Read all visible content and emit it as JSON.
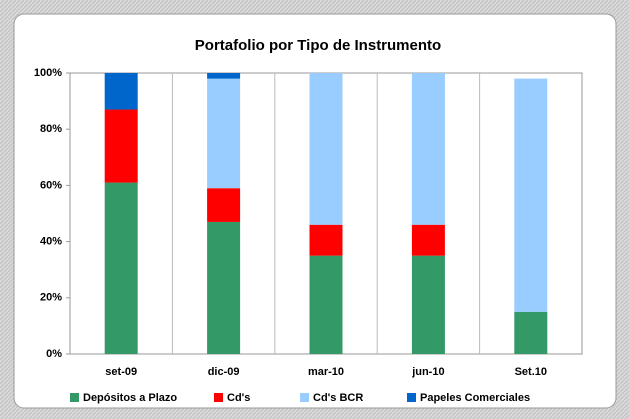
{
  "chart_data": {
    "type": "stacked_bar",
    "title": "Portafolio por Tipo de Instrumento",
    "categories": [
      "set-09",
      "dic-09",
      "mar-10",
      "jun-10",
      "Set.10"
    ],
    "series": [
      {
        "name": "Depósitos a Plazo",
        "color": "#339966",
        "values": [
          61,
          47,
          35,
          35,
          15
        ]
      },
      {
        "name": "Cd's",
        "color": "#ff0000",
        "values": [
          26,
          12,
          11,
          11,
          0
        ]
      },
      {
        "name": "Cd's BCR",
        "color": "#99ccff",
        "values": [
          0,
          39,
          54,
          54,
          83
        ]
      },
      {
        "name": "Papeles Comerciales",
        "color": "#0066cc",
        "values": [
          13,
          2,
          0,
          0,
          0
        ]
      }
    ],
    "ylim": [
      0,
      100
    ],
    "yticks": [
      {
        "value": 0,
        "label": "0%"
      },
      {
        "value": 20,
        "label": "20%"
      },
      {
        "value": 40,
        "label": "40%"
      },
      {
        "value": 60,
        "label": "60%"
      },
      {
        "value": 80,
        "label": "80%"
      },
      {
        "value": 100,
        "label": "100%"
      }
    ],
    "legend": "bottom"
  }
}
